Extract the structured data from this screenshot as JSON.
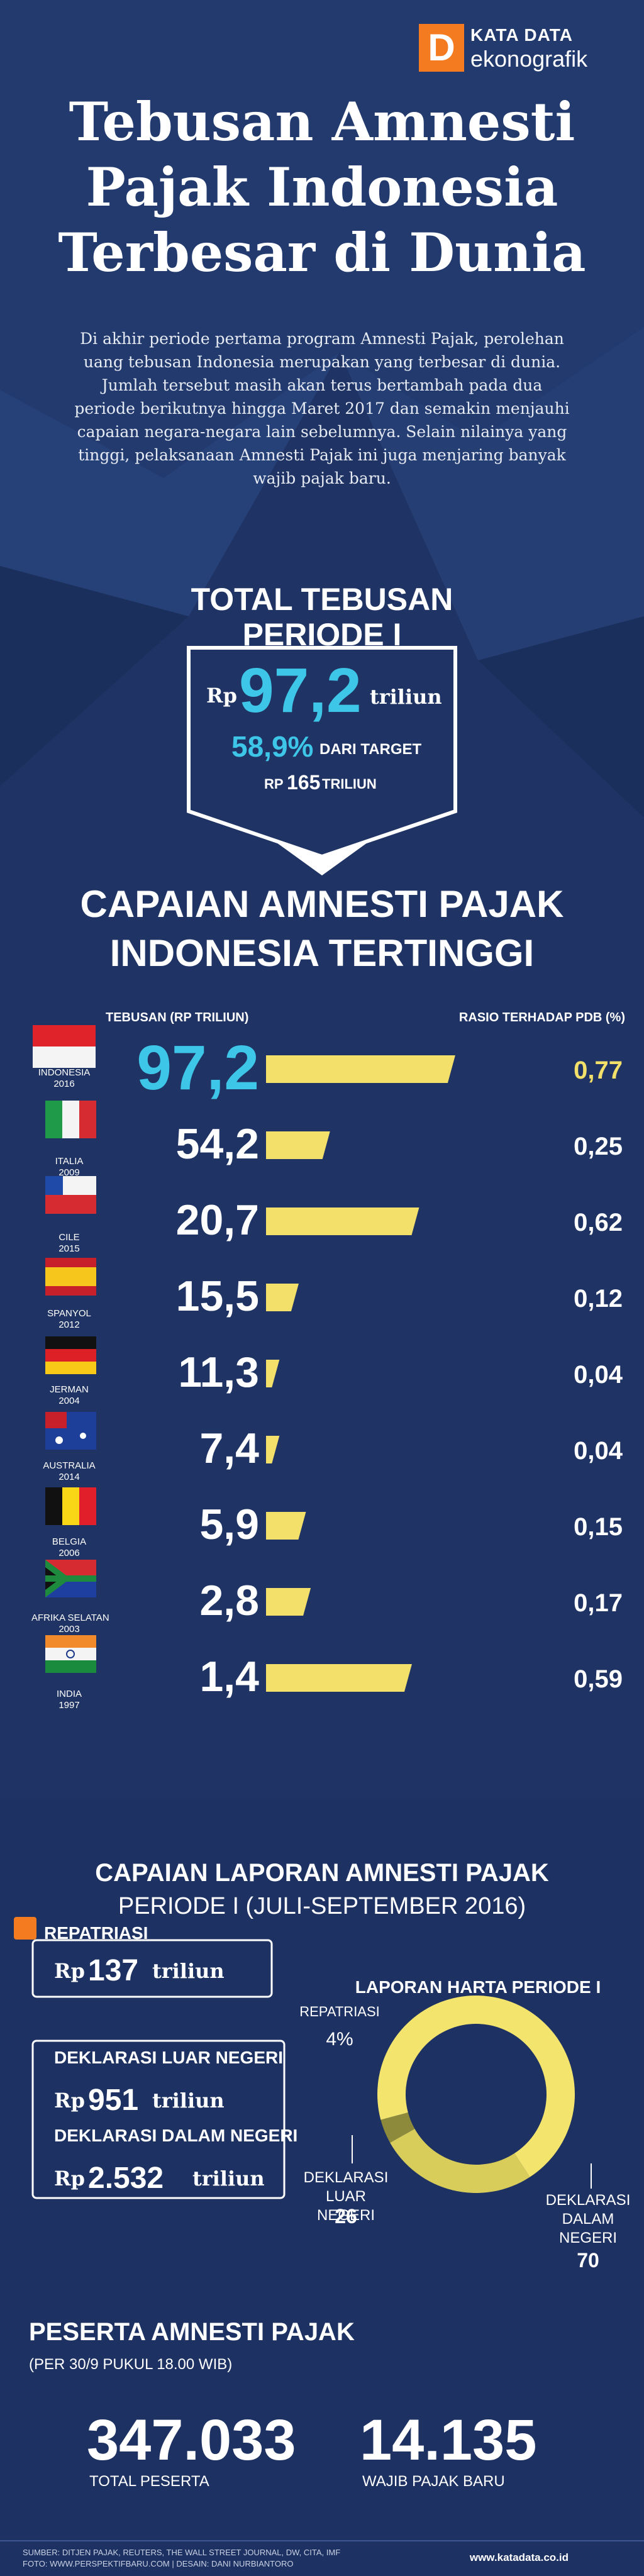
{
  "logo": {
    "mark": "D",
    "brand": "KATA DATA",
    "product": "ekonografik"
  },
  "header": {
    "title_lines": [
      "Tebusan Amnesti",
      "Pajak Indonesia",
      "Terbesar di Dunia"
    ],
    "intro": "Di akhir periode pertama program Amnesti Pajak, perolehan uang tebusan Indonesia merupakan yang terbesar di dunia. Jumlah tersebut masih akan terus bertambah pada dua periode berikutnya hingga Maret 2017 dan semakin menjauhi capaian negara-negara lain sebelumnya. Selain nilainya yang tinggi, pelaksanaan Amnesti Pajak ini juga menjaring banyak wajib pajak baru."
  },
  "total": {
    "title_lines": [
      "TOTAL TEBUSAN",
      "PERIODE I"
    ],
    "currency": "Rp",
    "value": "97,2",
    "unit": "triliun",
    "percent": "58,9%",
    "percent_note": "DARI TARGET",
    "target_currency": "RP",
    "target_value": "165",
    "target_unit": "TRILIUN"
  },
  "chart_data": [
    {
      "type": "bar",
      "title_lines": [
        "CAPAIAN AMNESTI PAJAK",
        "INDONESIA TERTINGGI"
      ],
      "categories": [
        "INDONESIA",
        "ITALIA",
        "CILE",
        "SPANYOL",
        "JERMAN",
        "AUSTRALIA",
        "BELGIA",
        "AFRIKA SELATAN",
        "INDIA"
      ],
      "years": [
        "2016",
        "2009",
        "2015",
        "2012",
        "2004",
        "2014",
        "2006",
        "2003",
        "1997"
      ],
      "series": [
        {
          "name": "TEBUSAN (RP TRILIUN)",
          "values": [
            97.2,
            54.2,
            20.7,
            15.5,
            11.3,
            7.4,
            5.9,
            2.8,
            1.4
          ],
          "value_labels": [
            "97,2",
            "54,2",
            "20,7",
            "15,5",
            "11,3",
            "7,4",
            "5,9",
            "2,8",
            "1,4"
          ]
        },
        {
          "name": "RASIO TERHADAP PDB (%)",
          "color": "#f3e06a",
          "values": [
            0.77,
            0.25,
            0.62,
            0.12,
            0.04,
            0.04,
            0.15,
            0.17,
            0.59
          ],
          "value_labels": [
            "0,77",
            "0,25",
            "0,62",
            "0,12",
            "0,04",
            "0,04",
            "0,15",
            "0,17",
            "0,59"
          ]
        }
      ]
    },
    {
      "type": "pie",
      "title": "LAPORAN HARTA PERIODE I",
      "categories": [
        "REPATRIASI",
        "DEKLARASI LUAR NEGERI",
        "DEKLARASI DALAM NEGERI"
      ],
      "values": [
        4,
        26,
        70
      ],
      "value_labels": [
        "4%",
        "26",
        "70"
      ],
      "colors": [
        "#8d8a3c",
        "#d8cd5a",
        "#f3e46e"
      ]
    }
  ],
  "report": {
    "title": "CAPAIAN LAPORAN AMNESTI PAJAK",
    "subtitle": "PERIODE I (JULI-SEPTEMBER 2016)",
    "items": [
      {
        "label": "REPATRIASI",
        "currency": "Rp",
        "value": "137",
        "unit": "triliun"
      },
      {
        "label": "DEKLARASI LUAR NEGERI",
        "currency": "Rp",
        "value": "951",
        "unit": "triliun"
      },
      {
        "label": "DEKLARASI DALAM NEGERI",
        "currency": "Rp",
        "value": "2.532",
        "unit": "triliun"
      }
    ]
  },
  "participants": {
    "title": "PESERTA AMNESTI PAJAK",
    "note": "(PER 30/9 PUKUL 18.00 WIB)",
    "stats": [
      {
        "value": "347.033",
        "label": "TOTAL PESERTA"
      },
      {
        "value": "14.135",
        "label": "WAJIB PAJAK BARU"
      }
    ]
  },
  "footer": {
    "source": "SUMBER: DITJEN PAJAK, REUTERS, THE WALL STREET JOURNAL, DW, CITA, IMF",
    "credit": "FOTO: WWW.PERSPEKTIFBARU.COM | DESAIN: DANI NURBIANTORO",
    "site": "www.katadata.co.id"
  }
}
